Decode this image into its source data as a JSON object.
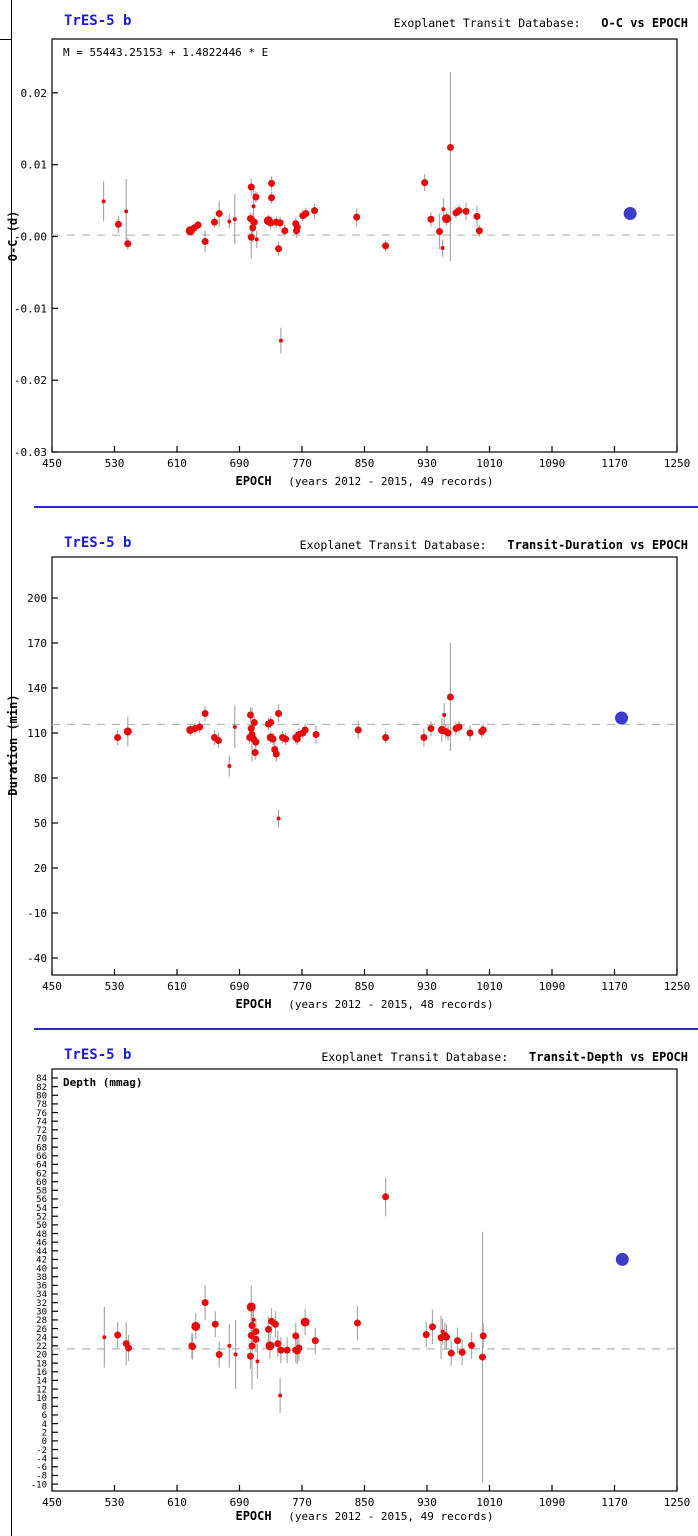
{
  "page": {
    "source": "Exoplanet Transit Database",
    "accent_blue": "#1a1ad6",
    "separator_blue": "#2929cc",
    "point_red": "#e60b0b",
    "highlight_blue": "#3c3cc8",
    "errorbar_gray": "#a8a8a8",
    "dashed_gray": "#b4b4b4"
  },
  "chart_data": [
    {
      "type": "scatter",
      "title": "TrES-5 b",
      "header_prefix": "Exoplanet Transit Database:",
      "header_title": "O-C vs EPOCH",
      "annotation": "M = 55443.25153 + 1.4822446 * E",
      "annotation_bold": false,
      "ylabel": "O-C (d)",
      "xlabel": "EPOCH",
      "xcaption": "(years 2012 - 2015, 49 records)",
      "xlim": [
        450,
        1250
      ],
      "ylim": [
        -0.03,
        0.0275
      ],
      "xticks": [
        450,
        530,
        610,
        690,
        770,
        850,
        930,
        1010,
        1090,
        1170,
        1250
      ],
      "yticks": [
        {
          "v": 0.02,
          "label": "0.02"
        },
        {
          "v": 0.01,
          "label": "0.01"
        },
        {
          "v": 0.0,
          "label": "-0.00"
        },
        {
          "v": -0.01,
          "label": "-0.01"
        },
        {
          "v": -0.02,
          "label": "-0.02"
        },
        {
          "v": -0.03,
          "label": "-0.03"
        }
      ],
      "ytick_font": 11,
      "dashed_y": 0.0002,
      "grid": false,
      "legend": "none",
      "points": [
        [
          516,
          0.0049,
          2,
          0.0028
        ],
        [
          535,
          0.0017,
          3.5,
          0.0012
        ],
        [
          545,
          0.0035,
          2,
          0.0045
        ],
        [
          547,
          -0.001,
          3.5,
          0.0008
        ],
        [
          627,
          0.0008,
          4.5,
          0.0006
        ],
        [
          632,
          0.0012,
          3.5,
          0.0006
        ],
        [
          637,
          0.0016,
          3.5,
          0.0006
        ],
        [
          646,
          -0.0007,
          3.5,
          0.0015
        ],
        [
          658,
          0.002,
          3.5,
          0.0008
        ],
        [
          664,
          0.0032,
          3.5,
          0.0018
        ],
        [
          677,
          0.0021,
          2,
          0.001
        ],
        [
          684,
          0.0024,
          2,
          0.0035
        ],
        [
          705,
          0.0069,
          3.5,
          0.0012
        ],
        [
          711,
          0.0055,
          3.5,
          0.0008
        ],
        [
          708,
          0.0042,
          2,
          0.0025
        ],
        [
          704,
          0.0025,
          3.5,
          0.0008
        ],
        [
          707,
          0.0012,
          3.5,
          0.002
        ],
        [
          709,
          0.002,
          3.5,
          0.0008
        ],
        [
          705,
          -0.0001,
          3.5,
          0.003
        ],
        [
          712,
          -0.0004,
          2,
          0.0012
        ],
        [
          731,
          0.0074,
          3.5,
          0.001
        ],
        [
          731,
          0.0054,
          3.5,
          0.0008
        ],
        [
          727,
          0.0022,
          4.5,
          0.0008
        ],
        [
          730,
          0.0019,
          3.5,
          0.0008
        ],
        [
          737,
          0.002,
          3.5,
          0.0008
        ],
        [
          742,
          0.0019,
          3.5,
          0.0008
        ],
        [
          748,
          0.0008,
          3.5,
          0.0008
        ],
        [
          740,
          -0.0017,
          3.5,
          0.001
        ],
        [
          743,
          -0.0145,
          2,
          0.0018
        ],
        [
          762,
          0.0018,
          3.5,
          0.0008
        ],
        [
          764,
          0.0013,
          3.5,
          0.0008
        ],
        [
          763,
          0.0008,
          3.5,
          0.001
        ],
        [
          771,
          0.0029,
          3.5,
          0.0008
        ],
        [
          775,
          0.0032,
          3.5,
          0.0008
        ],
        [
          786,
          0.0036,
          3.5,
          0.001
        ],
        [
          840,
          0.0027,
          3.5,
          0.0012
        ],
        [
          877,
          -0.0013,
          3.5,
          0.0008
        ],
        [
          927,
          0.0075,
          3.5,
          0.0012
        ],
        [
          935,
          0.0024,
          3.5,
          0.001
        ],
        [
          946,
          0.0007,
          3.5,
          0.0025
        ],
        [
          951,
          0.0038,
          2,
          0.0015
        ],
        [
          950,
          -0.0016,
          2,
          0.0012
        ],
        [
          955,
          0.0025,
          4.5,
          0.001
        ],
        [
          960,
          0.0124,
          3.5,
          0.0105,
          0.0158
        ],
        [
          967,
          0.0033,
          3.5,
          0.0008
        ],
        [
          971,
          0.0036,
          3.5,
          0.0008
        ],
        [
          980,
          0.0035,
          3.5,
          0.0012
        ],
        [
          994,
          0.0028,
          3.5,
          0.0015
        ],
        [
          997,
          0.0008,
          3.5,
          0.0008
        ]
      ],
      "highlight_point": {
        "x": 1190,
        "y": 0.0032
      }
    },
    {
      "type": "scatter",
      "title": "TrES-5 b",
      "header_prefix": "Exoplanet Transit Database:",
      "header_title": "Transit-Duration vs EPOCH",
      "annotation": "",
      "annotation_bold": false,
      "ylabel": "Duration (min)",
      "xlabel": "EPOCH",
      "xcaption": "(years 2012 - 2015, 48 records)",
      "xlim": [
        450,
        1250
      ],
      "ylim": [
        -51.33,
        227.33
      ],
      "xticks": [
        450,
        530,
        610,
        690,
        770,
        850,
        930,
        1010,
        1090,
        1170,
        1250
      ],
      "yticks": [
        {
          "v": 200,
          "label": "200"
        },
        {
          "v": 170,
          "label": "170"
        },
        {
          "v": 140,
          "label": "140"
        },
        {
          "v": 110,
          "label": "110"
        },
        {
          "v": 80,
          "label": "80"
        },
        {
          "v": 50,
          "label": "50"
        },
        {
          "v": 20,
          "label": "20"
        },
        {
          "v": -10,
          "label": "-10"
        },
        {
          "v": -40,
          "label": "-40"
        }
      ],
      "ytick_font": 11,
      "dashed_y": 115.7,
      "grid": false,
      "legend": "none",
      "points": [
        [
          534,
          107,
          3.5,
          5
        ],
        [
          547,
          111,
          4,
          10
        ],
        [
          627,
          112,
          4,
          4
        ],
        [
          633,
          113,
          3.5,
          4
        ],
        [
          639,
          114,
          3.5,
          4
        ],
        [
          646,
          123,
          3.5,
          5
        ],
        [
          658,
          107,
          3.5,
          5
        ],
        [
          663,
          105,
          3.5,
          5
        ],
        [
          677,
          88,
          2,
          7
        ],
        [
          684,
          114,
          2,
          14
        ],
        [
          704,
          122,
          3.5,
          5
        ],
        [
          709,
          117,
          3.5,
          4
        ],
        [
          706,
          109,
          3.5,
          18
        ],
        [
          703,
          107,
          3.5,
          4
        ],
        [
          705,
          113,
          3.5,
          4
        ],
        [
          708,
          106,
          3.5,
          4
        ],
        [
          711,
          104,
          3.5,
          4
        ],
        [
          710,
          97,
          3.5,
          5
        ],
        [
          727,
          116,
          3.5,
          4
        ],
        [
          730,
          117,
          3.5,
          4
        ],
        [
          740,
          123,
          3.5,
          6
        ],
        [
          730,
          107,
          4,
          4
        ],
        [
          733,
          106,
          3.5,
          4
        ],
        [
          735,
          99,
          3.5,
          5
        ],
        [
          737,
          96,
          3.5,
          5
        ],
        [
          740,
          53,
          2,
          6
        ],
        [
          745,
          107,
          3.5,
          4
        ],
        [
          749,
          106,
          3.5,
          4
        ],
        [
          762,
          107,
          3.5,
          4
        ],
        [
          764,
          106,
          3.5,
          4
        ],
        [
          766,
          109,
          3.5,
          4
        ],
        [
          771,
          110,
          3.5,
          4
        ],
        [
          774,
          112,
          3.5,
          4
        ],
        [
          788,
          109,
          3.5,
          6
        ],
        [
          842,
          112,
          3.5,
          6
        ],
        [
          877,
          107,
          3.5,
          4
        ],
        [
          926,
          107,
          3.5,
          6
        ],
        [
          935,
          113,
          3.5,
          5
        ],
        [
          952,
          122,
          2,
          8
        ],
        [
          960,
          134,
          3.5,
          36
        ],
        [
          949,
          112,
          4,
          8
        ],
        [
          954,
          111,
          3.5,
          5
        ],
        [
          957,
          110,
          3.5,
          5
        ],
        [
          967,
          113,
          3.5,
          4
        ],
        [
          971,
          114,
          3.5,
          4
        ],
        [
          985,
          110,
          3.5,
          5
        ],
        [
          1000,
          111,
          3.5,
          4
        ],
        [
          1002,
          112,
          3.5,
          4
        ]
      ],
      "highlight_point": {
        "x": 1179,
        "y": 120
      }
    },
    {
      "type": "scatter",
      "title": "TrES-5 b",
      "header_prefix": "Exoplanet Transit Database:",
      "header_title": "Transit-Depth vs EPOCH",
      "annotation": "Depth (mmag)",
      "annotation_bold": true,
      "ylabel": "",
      "xlabel": "EPOCH",
      "xcaption": "(years 2012 - 2015, 49 records)",
      "xlim": [
        450,
        1250
      ],
      "ylim": [
        -11.6,
        86.08
      ],
      "xticks": [
        450,
        530,
        610,
        690,
        770,
        850,
        930,
        1010,
        1090,
        1170,
        1250
      ],
      "yticks": [
        {
          "v": 84,
          "label": "84"
        },
        {
          "v": 82,
          "label": "82"
        },
        {
          "v": 80,
          "label": "80"
        },
        {
          "v": 78,
          "label": "78"
        },
        {
          "v": 76,
          "label": "76"
        },
        {
          "v": 74,
          "label": "74"
        },
        {
          "v": 72,
          "label": "72"
        },
        {
          "v": 70,
          "label": "70"
        },
        {
          "v": 68,
          "label": "68"
        },
        {
          "v": 66,
          "label": "66"
        },
        {
          "v": 64,
          "label": "64"
        },
        {
          "v": 62,
          "label": "62"
        },
        {
          "v": 60,
          "label": "60"
        },
        {
          "v": 58,
          "label": "58"
        },
        {
          "v": 56,
          "label": "56"
        },
        {
          "v": 54,
          "label": "54"
        },
        {
          "v": 52,
          "label": "52"
        },
        {
          "v": 50,
          "label": "50"
        },
        {
          "v": 48,
          "label": "48"
        },
        {
          "v": 46,
          "label": "46"
        },
        {
          "v": 44,
          "label": "44"
        },
        {
          "v": 42,
          "label": "42"
        },
        {
          "v": 40,
          "label": "40"
        },
        {
          "v": 38,
          "label": "38"
        },
        {
          "v": 36,
          "label": "36"
        },
        {
          "v": 34,
          "label": "34"
        },
        {
          "v": 32,
          "label": "32"
        },
        {
          "v": 30,
          "label": "30"
        },
        {
          "v": 28,
          "label": "28"
        },
        {
          "v": 26,
          "label": "26"
        },
        {
          "v": 24,
          "label": "24"
        },
        {
          "v": 22,
          "label": "22"
        },
        {
          "v": 20,
          "label": "20"
        },
        {
          "v": 18,
          "label": "18"
        },
        {
          "v": 16,
          "label": "16"
        },
        {
          "v": 14,
          "label": "14"
        },
        {
          "v": 12,
          "label": "12"
        },
        {
          "v": 10,
          "label": "10"
        },
        {
          "v": 8,
          "label": "8"
        },
        {
          "v": 6,
          "label": "6"
        },
        {
          "v": 4,
          "label": "4"
        },
        {
          "v": 2,
          "label": "2"
        },
        {
          "v": 0,
          "label": "0"
        },
        {
          "v": -2,
          "label": "-2"
        },
        {
          "v": -4,
          "label": "-4"
        },
        {
          "v": -6,
          "label": "-6"
        },
        {
          "v": -8,
          "label": "-8"
        },
        {
          "v": -10,
          "label": "-10"
        }
      ],
      "ytick_font": 9,
      "dashed_y": 21.3,
      "grid": false,
      "legend": "none",
      "points": [
        [
          517,
          24,
          2,
          7
        ],
        [
          534,
          24.5,
          3.5,
          3
        ],
        [
          545,
          22.5,
          3.5,
          5
        ],
        [
          548,
          21.5,
          3.5,
          3
        ],
        [
          629,
          22,
          3.5,
          3
        ],
        [
          630,
          21.8,
          3.5,
          3
        ],
        [
          634,
          26.5,
          4.5,
          3
        ],
        [
          646,
          32,
          3.5,
          4
        ],
        [
          659,
          27,
          3.5,
          3
        ],
        [
          664,
          20,
          3.5,
          3
        ],
        [
          677,
          22,
          2,
          5
        ],
        [
          685,
          20,
          2,
          8
        ],
        [
          705,
          31,
          4.5,
          5
        ],
        [
          706,
          26.7,
          3.5,
          4
        ],
        [
          708,
          28,
          2,
          3
        ],
        [
          711,
          25.3,
          3.5,
          3
        ],
        [
          705,
          24.4,
          3.5,
          3
        ],
        [
          711,
          23.5,
          3.5,
          3
        ],
        [
          706,
          22,
          3.5,
          10
        ],
        [
          704,
          19.6,
          3.5,
          3
        ],
        [
          713,
          18.4,
          2,
          4
        ],
        [
          727,
          25.8,
          3.5,
          3
        ],
        [
          731,
          27.7,
          3.5,
          3
        ],
        [
          736,
          27,
          3.5,
          3
        ],
        [
          729,
          22,
          4.5,
          3
        ],
        [
          739,
          22.5,
          3.5,
          3
        ],
        [
          743,
          21,
          3.5,
          3
        ],
        [
          742,
          10.5,
          2,
          4
        ],
        [
          751,
          21,
          3.5,
          3
        ],
        [
          762,
          21,
          3.5,
          3
        ],
        [
          764,
          20.8,
          3.5,
          3
        ],
        [
          762,
          24.3,
          3.5,
          3
        ],
        [
          766,
          21.5,
          3.5,
          3
        ],
        [
          774,
          27.5,
          4.5,
          3
        ],
        [
          787,
          23.2,
          3.5,
          3
        ],
        [
          841,
          27.3,
          3.5,
          4
        ],
        [
          877,
          56.5,
          3.5,
          4.5
        ],
        [
          929,
          24.6,
          3.5,
          3
        ],
        [
          937,
          26.4,
          3.5,
          4
        ],
        [
          948,
          23.9,
          3.5,
          5
        ],
        [
          950,
          25.3,
          2,
          3
        ],
        [
          953,
          24.4,
          3.5,
          3
        ],
        [
          955,
          24,
          3.5,
          3
        ],
        [
          961,
          20.3,
          3.5,
          3
        ],
        [
          969,
          23.2,
          3.5,
          3
        ],
        [
          975,
          20.5,
          3.5,
          3
        ],
        [
          987,
          22.1,
          3.5,
          3
        ],
        [
          1002,
          24.3,
          3.5,
          3
        ],
        [
          1001,
          19.4,
          3.5,
          29
        ]
      ],
      "highlight_point": {
        "x": 1180,
        "y": 42
      }
    }
  ]
}
